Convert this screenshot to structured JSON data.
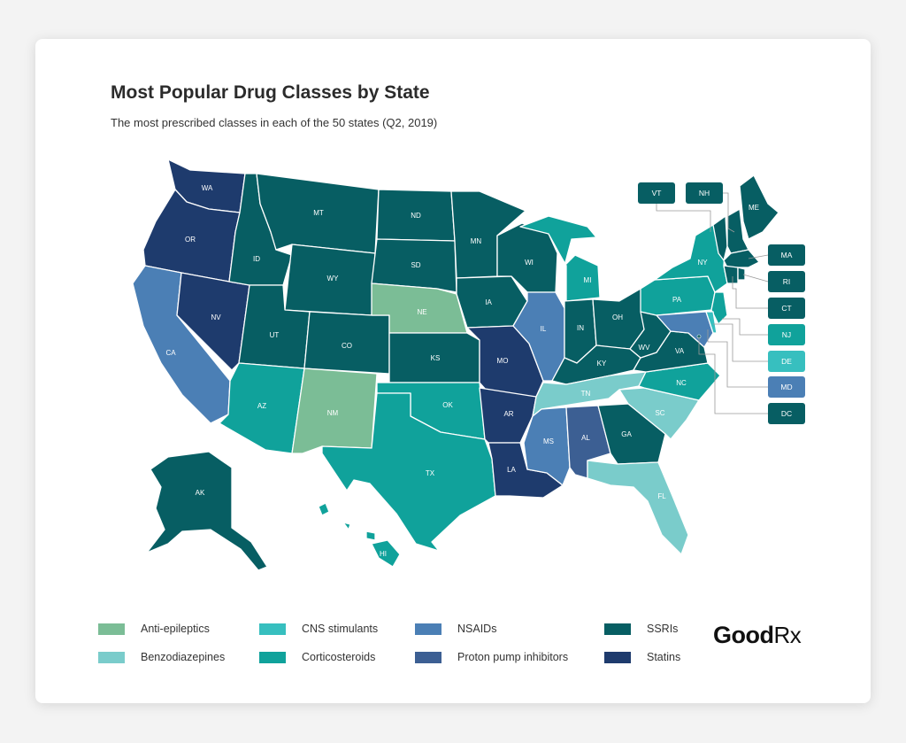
{
  "title": "Most Popular Drug Classes by State",
  "subtitle": "The most prescribed classes in each of the 50 states (Q2, 2019)",
  "logo": {
    "brand": "Good",
    "suffix": "Rx"
  },
  "colors": {
    "anti_epileptics": "#7bbd96",
    "benzodiazepines": "#7acccb",
    "cns_stimulants": "#37bfbf",
    "corticosteroids": "#10a29b",
    "nsaids": "#4b7fb5",
    "ppi": "#3c5f93",
    "ssris": "#075e63",
    "statins": "#1e3b6d"
  },
  "legend": [
    {
      "label": "Anti-epileptics",
      "color": "#7bbd96"
    },
    {
      "label": "Benzodiazepines",
      "color": "#7acccb"
    },
    {
      "label": "CNS stimulants",
      "color": "#37bfbf"
    },
    {
      "label": "Corticosteroids",
      "color": "#10a29b"
    },
    {
      "label": "NSAIDs",
      "color": "#4b7fb5"
    },
    {
      "label": "Proton pump inhibitors",
      "color": "#3c5f93"
    },
    {
      "label": "SSRIs",
      "color": "#075e63"
    },
    {
      "label": "Statins",
      "color": "#1e3b6d"
    }
  ],
  "states": {
    "WA": "Statins",
    "OR": "Statins",
    "CA": "NSAIDs",
    "NV": "Statins",
    "ID": "SSRIs",
    "MT": "SSRIs",
    "WY": "SSRIs",
    "UT": "SSRIs",
    "AZ": "Corticosteroids",
    "CO": "SSRIs",
    "NM": "Anti-epileptics",
    "ND": "SSRIs",
    "SD": "SSRIs",
    "NE": "Anti-epileptics",
    "KS": "SSRIs",
    "OK": "Corticosteroids",
    "TX": "Corticosteroids",
    "MN": "SSRIs",
    "IA": "SSRIs",
    "MO": "Statins",
    "AR": "Statins",
    "LA": "Statins",
    "WI": "SSRIs",
    "IL": "NSAIDs",
    "MI": "Corticosteroids",
    "IN": "SSRIs",
    "OH": "SSRIs",
    "KY": "SSRIs",
    "TN": "Benzodiazepines",
    "MS": "NSAIDs",
    "AL": "Proton pump inhibitors",
    "GA": "SSRIs",
    "FL": "Benzodiazepines",
    "SC": "Benzodiazepines",
    "NC": "Corticosteroids",
    "VA": "SSRIs",
    "WV": "SSRIs",
    "PA": "Corticosteroids",
    "NY": "Corticosteroids",
    "ME": "SSRIs",
    "AK": "SSRIs",
    "HI": "Corticosteroids",
    "VT": "SSRIs",
    "NH": "SSRIs",
    "MA": "SSRIs",
    "RI": "SSRIs",
    "CT": "SSRIs",
    "NJ": "Corticosteroids",
    "DE": "CNS stimulants",
    "MD": "NSAIDs",
    "DC": "SSRIs"
  },
  "callouts": [
    "VT",
    "NH",
    "MA",
    "RI",
    "CT",
    "NJ",
    "DE",
    "MD",
    "DC"
  ]
}
